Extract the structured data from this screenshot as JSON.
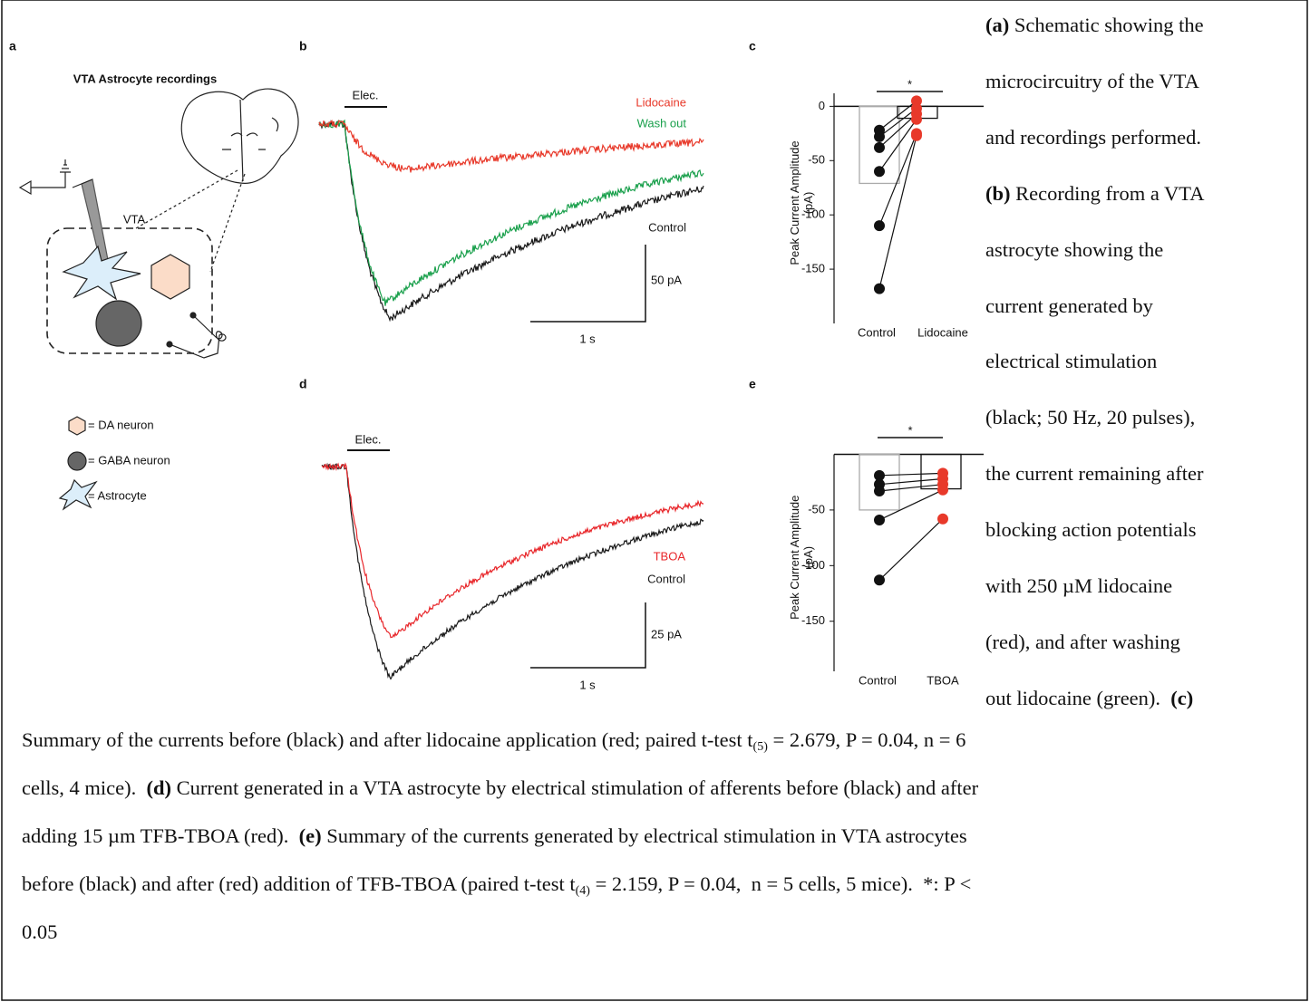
{
  "panels": {
    "a": {
      "letter": "a",
      "title": "VTA Astrocyte recordings",
      "region": "VTA",
      "legend": [
        "= DA neuron",
        "= GABA neuron",
        "= Astrocyte"
      ]
    },
    "b": {
      "letter": "b",
      "stim": "Elec.",
      "traces": [
        "Lidocaine",
        "Wash out",
        "Control"
      ],
      "colors": [
        "#e8392a",
        "#1aa04c",
        "#1a1a1a"
      ],
      "scale_y": "50 pA",
      "scale_x": "1 s"
    },
    "c": {
      "letter": "c",
      "ylabel": [
        "Peak Current Amplitude",
        "(pA)"
      ],
      "categories": [
        "Control",
        "Lidocaine"
      ],
      "ylim": [
        -200,
        12
      ],
      "yticks": [
        0,
        -50,
        -100,
        -150
      ],
      "means": [
        -71,
        -11
      ],
      "values": [
        [
          -22,
          -28,
          -38,
          -60,
          -110,
          -168
        ],
        [
          5,
          -2,
          -7,
          -12,
          -25,
          -27
        ]
      ],
      "colors": [
        "#111111",
        "#e8392a"
      ],
      "bar_colors": [
        "#aaaaaa",
        "#111111"
      ],
      "significance": "*"
    },
    "d": {
      "letter": "d",
      "stim": "Elec.",
      "traces": [
        "TBOA",
        "Control"
      ],
      "colors": [
        "#e8262a",
        "#1a1a1a"
      ],
      "scale_y": "25 pA",
      "scale_x": "1 s"
    },
    "e": {
      "letter": "e",
      "ylabel": [
        "Peak Current Amplitude",
        "(pA)"
      ],
      "categories": [
        "Control",
        "TBOA"
      ],
      "ylim": [
        -195,
        0
      ],
      "yticks": [
        -50,
        -100,
        -150
      ],
      "means": [
        -50,
        -31
      ],
      "values": [
        [
          -19,
          -27,
          -33,
          -59,
          -113
        ],
        [
          -17,
          -22,
          -27,
          -32,
          -58
        ]
      ],
      "colors": [
        "#111111",
        "#e8392a"
      ],
      "bar_colors": [
        "#aaaaaa",
        "#111111"
      ],
      "significance": "*"
    }
  },
  "caption": {
    "side": [
      [
        {
          "b": "(a)"
        },
        {
          "t": " Schematic showing the"
        }
      ],
      [
        {
          "t": "microcircuitry of the VTA"
        }
      ],
      [
        {
          "t": "and recordings performed."
        }
      ],
      [
        {
          "b": "(b)"
        },
        {
          "t": " Recording from a VTA"
        }
      ],
      [
        {
          "t": "astrocyte showing the"
        }
      ],
      [
        {
          "t": "current generated by"
        }
      ],
      [
        {
          "t": "electrical stimulation"
        }
      ],
      [
        {
          "t": "(black; 50 Hz, 20 pulses),"
        }
      ],
      [
        {
          "t": "the current remaining after"
        }
      ],
      [
        {
          "t": "blocking action potentials"
        }
      ],
      [
        {
          "t": "with 250 µM lidocaine"
        }
      ],
      [
        {
          "t": "(red), and after washing"
        }
      ],
      [
        {
          "t": "out lidocaine (green).  "
        },
        {
          "b": "(c)"
        }
      ]
    ],
    "bottom": [
      [
        {
          "t": "Summary of the currents before (black) and after lidocaine application (red; paired t-test t"
        },
        {
          "sub": "(5)"
        },
        {
          "t": " = 2.679, P = 0.04, n = 6"
        }
      ],
      [
        {
          "t": "cells, 4 mice).  "
        },
        {
          "b": "(d)"
        },
        {
          "t": " Current generated in a VTA astrocyte by electrical stimulation of afferents before (black) and after"
        }
      ],
      [
        {
          "t": "adding 15 µm TFB-TBOA (red).  "
        },
        {
          "b": "(e)"
        },
        {
          "t": " Summary of the currents generated by electrical stimulation in VTA astrocytes"
        }
      ],
      [
        {
          "t": "before (black) and after (red) addition of TFB-TBOA (paired t-test t"
        },
        {
          "sub": "(4)"
        },
        {
          "t": " = 2.159, P = 0.04,  n = 5 cells, 5 mice).  *: P <"
        }
      ],
      [
        {
          "t": "0.05"
        }
      ]
    ]
  }
}
